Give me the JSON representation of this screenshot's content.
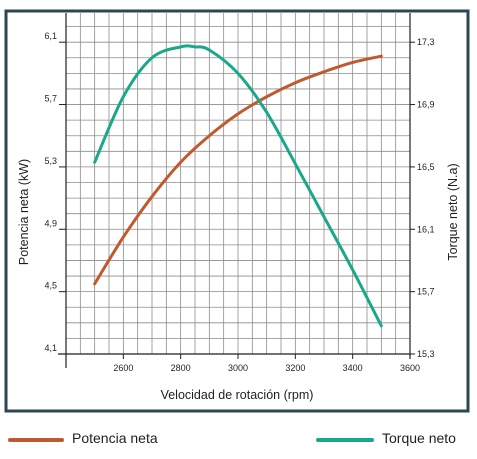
{
  "chart_data": {
    "type": "line",
    "title": "",
    "xlabel": "Velocidad de rotación (rpm)",
    "ylabel_left": "Potencia neta (kW)",
    "ylabel_right": "Torque neto (N.a)",
    "xlim": [
      2400,
      3600
    ],
    "ylim_left": [
      4.1,
      6.3
    ],
    "ylim_right": [
      15.3,
      17.5
    ],
    "x_ticks": [
      "2600",
      "2800",
      "3000",
      "3200",
      "3400",
      "3600"
    ],
    "y_left_ticks": [
      "4,1",
      "4,5",
      "4,9",
      "5,3",
      "5,7",
      "6,1"
    ],
    "y_right_ticks": [
      "15,3",
      "15,7",
      "16,1",
      "16,5",
      "16,9",
      "17,3"
    ],
    "grid": true,
    "legend_position": "bottom",
    "series": [
      {
        "name": "Potencia neta",
        "axis": "left",
        "color": "#c05a2e",
        "x": [
          2500,
          2600,
          2700,
          2800,
          2900,
          3000,
          3100,
          3200,
          3300,
          3400,
          3500
        ],
        "y": [
          4.55,
          4.85,
          5.11,
          5.33,
          5.5,
          5.64,
          5.75,
          5.84,
          5.91,
          5.97,
          6.01
        ]
      },
      {
        "name": "Torque neto",
        "axis": "right",
        "color": "#1aa88a",
        "x": [
          2500,
          2600,
          2700,
          2800,
          2850,
          2900,
          3000,
          3100,
          3200,
          3300,
          3400,
          3500
        ],
        "y": [
          16.53,
          16.95,
          17.2,
          17.27,
          17.27,
          17.25,
          17.1,
          16.85,
          16.52,
          16.18,
          15.84,
          15.48
        ]
      }
    ]
  },
  "legend": {
    "items": [
      {
        "label": "Potencia neta",
        "color": "#c05a2e"
      },
      {
        "label": "Torque neto",
        "color": "#1aa88a"
      }
    ]
  }
}
